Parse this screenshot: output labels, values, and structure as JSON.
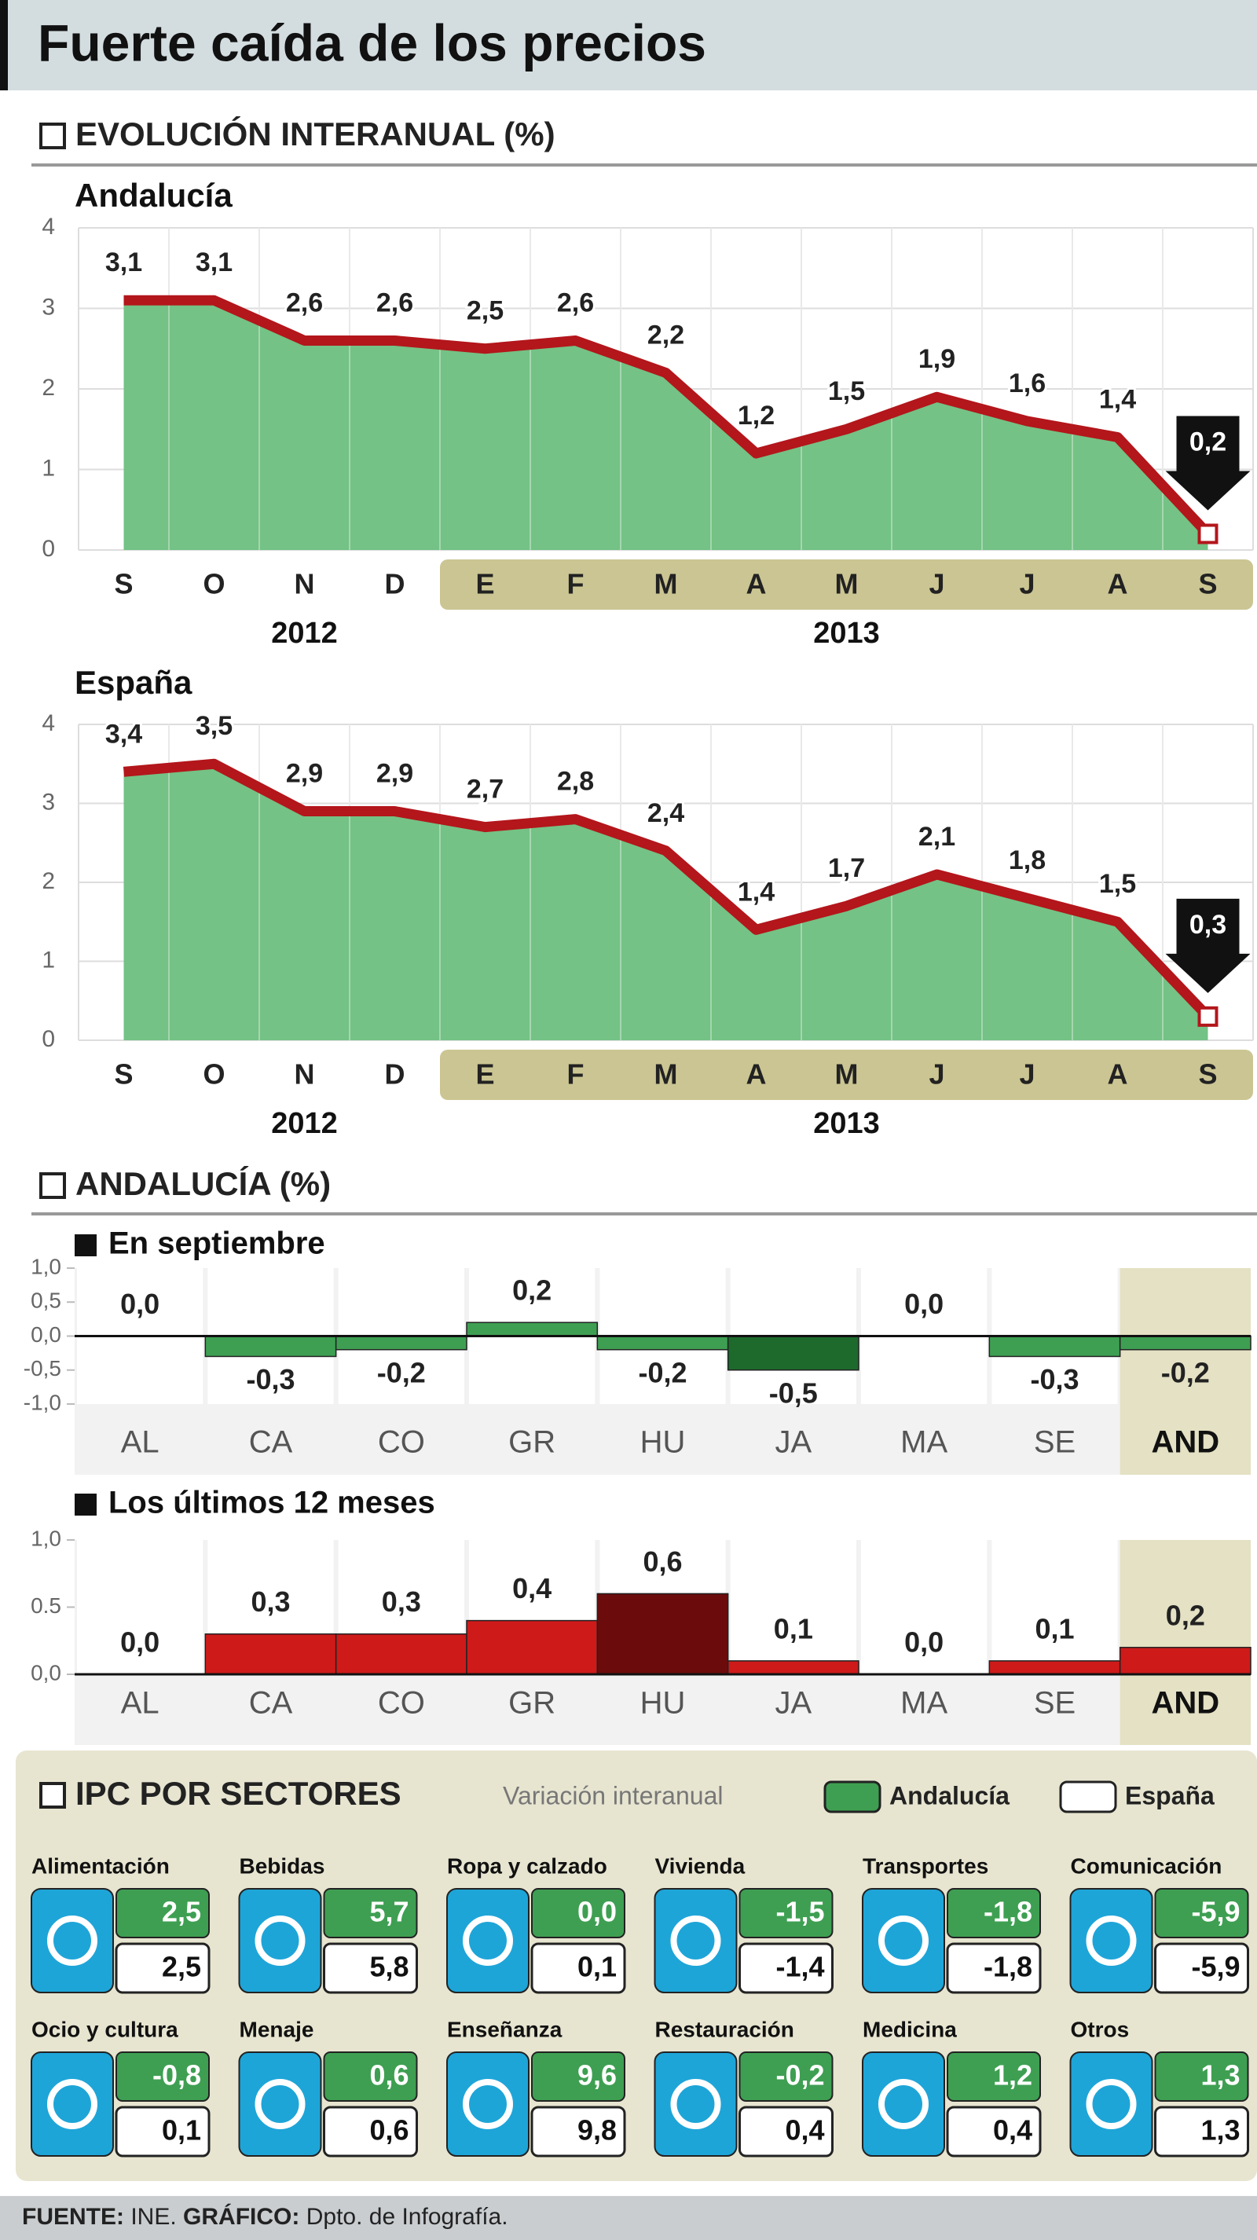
{
  "title": "Fuerte caída de los precios",
  "section_evolution": "EVOLUCIÓN INTERANUAL (%)",
  "section_andalucia": "ANDALUCÍA (%)",
  "chart_data": [
    {
      "type": "area",
      "title": "Andalucía",
      "categories": [
        "S",
        "O",
        "N",
        "D",
        "E",
        "F",
        "M",
        "A",
        "M",
        "J",
        "J",
        "A",
        "S"
      ],
      "x_groups": [
        "2012",
        "2013"
      ],
      "values": [
        3.1,
        3.1,
        2.6,
        2.6,
        2.5,
        2.6,
        2.2,
        1.2,
        1.5,
        1.9,
        1.6,
        1.4,
        0.2
      ],
      "value_labels": [
        "3,1",
        "3,1",
        "2,6",
        "2,6",
        "2,5",
        "2,6",
        "2,2",
        "1,2",
        "1,5",
        "1,9",
        "1,6",
        "1,4",
        "0,2"
      ],
      "ylim": [
        0,
        4
      ],
      "yticks": [
        0,
        1,
        2,
        3,
        4
      ],
      "color": "#74c285",
      "line_color": "#b3161b",
      "grid": true
    },
    {
      "type": "area",
      "title": "España",
      "categories": [
        "S",
        "O",
        "N",
        "D",
        "E",
        "F",
        "M",
        "A",
        "M",
        "J",
        "J",
        "A",
        "S"
      ],
      "x_groups": [
        "2012",
        "2013"
      ],
      "values": [
        3.4,
        3.5,
        2.9,
        2.9,
        2.7,
        2.8,
        2.4,
        1.4,
        1.7,
        2.1,
        1.8,
        1.5,
        0.3
      ],
      "value_labels": [
        "3,4",
        "3,5",
        "2,9",
        "2,9",
        "2,7",
        "2,8",
        "2,4",
        "1,4",
        "1,7",
        "2,1",
        "1,8",
        "1,5",
        "0,3"
      ],
      "ylim": [
        0,
        4
      ],
      "yticks": [
        0,
        1,
        2,
        3,
        4
      ],
      "color": "#74c285",
      "line_color": "#b3161b",
      "grid": true
    },
    {
      "type": "bar",
      "title": "En septiembre",
      "categories": [
        "AL",
        "CA",
        "CO",
        "GR",
        "HU",
        "JA",
        "MA",
        "SE",
        "AND"
      ],
      "values": [
        0.0,
        -0.3,
        -0.2,
        0.2,
        -0.2,
        -0.5,
        0.0,
        -0.3,
        -0.2
      ],
      "value_labels": [
        "0,0",
        "-0,3",
        "-0,2",
        "0,2",
        "-0,2",
        "-0,5",
        "0,0",
        "-0,3",
        "-0,2"
      ],
      "colors": [
        "#3e9f52",
        "#3e9f52",
        "#3e9f52",
        "#3e9f52",
        "#3e9f52",
        "#1d6a2c",
        "#3e9f52",
        "#3e9f52",
        "#3e9f52"
      ],
      "ylim": [
        -1,
        1
      ],
      "yticks": [
        {
          "value": 1,
          "label": "1,0"
        },
        {
          "value": 0.5,
          "label": "0,5"
        },
        {
          "value": 0,
          "label": "0,0"
        },
        {
          "value": -0.5,
          "label": "-0,5"
        },
        {
          "value": -1,
          "label": "-1,0"
        }
      ]
    },
    {
      "type": "bar",
      "title": "Los últimos 12 meses",
      "categories": [
        "AL",
        "CA",
        "CO",
        "GR",
        "HU",
        "JA",
        "MA",
        "SE",
        "AND"
      ],
      "values": [
        0.0,
        0.3,
        0.3,
        0.4,
        0.6,
        0.1,
        0.0,
        0.1,
        0.2
      ],
      "value_labels": [
        "0,0",
        "0,3",
        "0,3",
        "0,4",
        "0,6",
        "0,1",
        "0,0",
        "0,1",
        "0,2"
      ],
      "colors": [
        "#cf1a1a",
        "#cf1a1a",
        "#cf1a1a",
        "#cf1a1a",
        "#6b0b0b",
        "#cf1a1a",
        "#cf1a1a",
        "#cf1a1a",
        "#cf1a1a"
      ],
      "ylim": [
        0,
        1
      ],
      "yticks": [
        {
          "value": 0,
          "label": "0,0"
        },
        {
          "value": 0.5,
          "label": "0.5"
        },
        {
          "value": 1,
          "label": "1,0"
        }
      ]
    }
  ],
  "sectors": {
    "title": "IPC POR SECTORES",
    "subtitle": "Variación interanual",
    "legend": [
      "Andalucía",
      "España"
    ],
    "items": [
      {
        "name": "Alimentación",
        "andalucia": "2,5",
        "espana": "2,5"
      },
      {
        "name": "Bebidas",
        "andalucia": "5,7",
        "espana": "5,8"
      },
      {
        "name": "Ropa y calzado",
        "andalucia": "0,0",
        "espana": "0,1"
      },
      {
        "name": "Vivienda",
        "andalucia": "-1,5",
        "espana": "-1,4"
      },
      {
        "name": "Transportes",
        "andalucia": "-1,8",
        "espana": "-1,8"
      },
      {
        "name": "Comunicación",
        "andalucia": "-5,9",
        "espana": "-5,9"
      },
      {
        "name": "Ocio y cultura",
        "andalucia": "-0,8",
        "espana": "0,1"
      },
      {
        "name": "Menaje",
        "andalucia": "0,6",
        "espana": "0,6"
      },
      {
        "name": "Enseñanza",
        "andalucia": "9,6",
        "espana": "9,8"
      },
      {
        "name": "Restauración",
        "andalucia": "-0,2",
        "espana": "0,4"
      },
      {
        "name": "Medicina",
        "andalucia": "1,2",
        "espana": "0,4"
      },
      {
        "name": "Otros",
        "andalucia": "1,3",
        "espana": "1,3"
      }
    ]
  },
  "footer": {
    "source_label": "FUENTE:",
    "source": "INE.",
    "graphic_label": "GRÁFICO:",
    "graphic": "Dpto. de Infografía."
  }
}
